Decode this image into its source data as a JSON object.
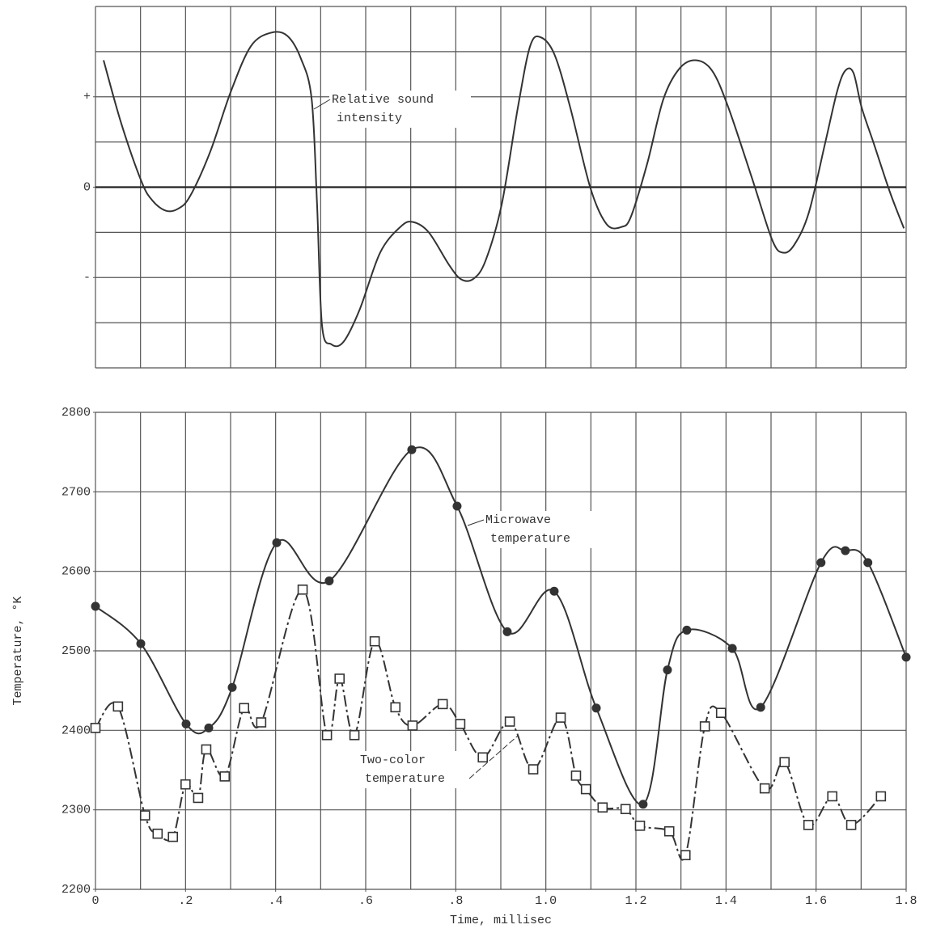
{
  "chart_data": [
    {
      "type": "line",
      "xlim": [
        0,
        1.8
      ],
      "xgrid": [
        0,
        0.1,
        0.2,
        0.3,
        0.4,
        0.5,
        0.6,
        0.7,
        0.8,
        0.9,
        1.0,
        1.1,
        1.2,
        1.3,
        1.4,
        1.5,
        1.6,
        1.7,
        1.8
      ],
      "ylim": [
        -4,
        4
      ],
      "ygrid": [
        -4,
        -3,
        -2,
        -1,
        0,
        1,
        2,
        3,
        4
      ],
      "yticks": [
        {
          "value": 2,
          "label": "+"
        },
        0,
        {
          "value": -2,
          "label": "-"
        }
      ],
      "zero_line": true,
      "grid": true,
      "series": [
        {
          "color": "#333333",
          "marker": "none",
          "x": [
            0.018,
            0.057,
            0.102,
            0.126,
            0.156,
            0.183,
            0.21,
            0.255,
            0.3,
            0.345,
            0.39,
            0.426,
            0.456,
            0.48,
            0.492,
            0.503,
            0.524,
            0.551,
            0.587,
            0.632,
            0.677,
            0.704,
            0.74,
            0.785,
            0.812,
            0.839,
            0.866,
            0.902,
            0.938,
            0.965,
            0.988,
            1.019,
            1.054,
            1.099,
            1.135,
            1.168,
            1.189,
            1.225,
            1.261,
            1.297,
            1.333,
            1.369,
            1.405,
            1.459,
            1.503,
            1.527,
            1.552,
            1.584,
            1.62,
            1.647,
            1.665,
            1.683,
            1.701,
            1.728,
            1.764,
            1.795
          ],
          "values": [
            2.81,
            1.42,
            0.13,
            -0.29,
            -0.52,
            -0.48,
            -0.2,
            0.79,
            2.1,
            3.12,
            3.42,
            3.35,
            2.85,
            1.95,
            -0.38,
            -3.06,
            -3.48,
            -3.42,
            -2.7,
            -1.45,
            -0.88,
            -0.77,
            -1.0,
            -1.72,
            -2.04,
            -2.03,
            -1.63,
            -0.38,
            1.77,
            3.12,
            3.32,
            2.94,
            1.77,
            -0.02,
            -0.82,
            -0.88,
            -0.65,
            0.52,
            1.95,
            2.63,
            2.81,
            2.58,
            1.77,
            0.16,
            -1.18,
            -1.45,
            -1.27,
            -0.56,
            0.97,
            2.13,
            2.58,
            2.53,
            1.77,
            0.97,
            -0.11,
            -0.91
          ],
          "label": [
            "Relative sound",
            "intensity"
          ]
        }
      ]
    },
    {
      "type": "line",
      "xlabel": "Time, millisec",
      "ylabel": "Temperature, °K",
      "xlim": [
        0,
        1.8
      ],
      "xgrid": [
        0,
        0.1,
        0.2,
        0.3,
        0.4,
        0.5,
        0.6,
        0.7,
        0.8,
        0.9,
        1.0,
        1.1,
        1.2,
        1.3,
        1.4,
        1.5,
        1.6,
        1.7,
        1.8
      ],
      "xticks": [
        0,
        {
          "value": 0.2,
          "label": ".2"
        },
        {
          "value": 0.4,
          "label": ".4"
        },
        {
          "value": 0.6,
          "label": ".6"
        },
        {
          "value": 0.8,
          "label": ".8"
        },
        {
          "value": 1.0,
          "label": "1.0"
        },
        {
          "value": 1.2,
          "label": "1.2"
        },
        {
          "value": 1.4,
          "label": "1.4"
        },
        {
          "value": 1.6,
          "label": "1.6"
        },
        {
          "value": 1.8,
          "label": "1.8"
        }
      ],
      "ylim": [
        2200,
        2800
      ],
      "yticks": [
        2200,
        2300,
        2400,
        2500,
        2600,
        2700,
        2800
      ],
      "grid": true,
      "series": [
        {
          "color": "#333333",
          "marker": "circle",
          "x": [
            0,
            0.1006,
            0.2012,
            0.2515,
            0.3036,
            0.4024,
            0.519,
            0.7023,
            0.8029,
            0.9143,
            1.0185,
            1.112,
            1.216,
            1.27,
            1.313,
            1.414,
            1.477,
            1.611,
            1.665,
            1.715,
            1.8
          ],
          "values": [
            2556,
            2509,
            2408,
            2403,
            2454,
            2636,
            2588,
            2753,
            2682,
            2524,
            2575,
            2428,
            2307,
            2476,
            2526,
            2503,
            2429,
            2611,
            2626,
            2611,
            2492
          ],
          "label": [
            "Microwave",
            "temperature"
          ]
        },
        {
          "color": "#333333",
          "marker": "square",
          "dashed": true,
          "x": [
            0,
            0.05,
            0.11,
            0.138,
            0.172,
            0.2,
            0.228,
            0.246,
            0.287,
            0.33,
            0.368,
            0.46,
            0.514,
            0.542,
            0.575,
            0.62,
            0.666,
            0.704,
            0.771,
            0.81,
            0.86,
            0.92,
            0.972,
            1.033,
            1.067,
            1.089,
            1.126,
            1.177,
            1.209,
            1.274,
            1.31,
            1.353,
            1.389,
            1.486,
            1.53,
            1.583,
            1.636,
            1.678,
            1.744
          ],
          "values": [
            2403,
            2430,
            2293,
            2270,
            2266,
            2332,
            2315,
            2376,
            2342,
            2428,
            2410,
            2577,
            2394,
            2465,
            2394,
            2512,
            2429,
            2406,
            2433,
            2408,
            2366,
            2411,
            2351,
            2416,
            2343,
            2326,
            2303,
            2301,
            2280,
            2273,
            2243,
            2405,
            2422,
            2327,
            2360,
            2281,
            2317,
            2281,
            2317
          ],
          "label": [
            "Two-color",
            "temperature"
          ]
        }
      ]
    }
  ]
}
